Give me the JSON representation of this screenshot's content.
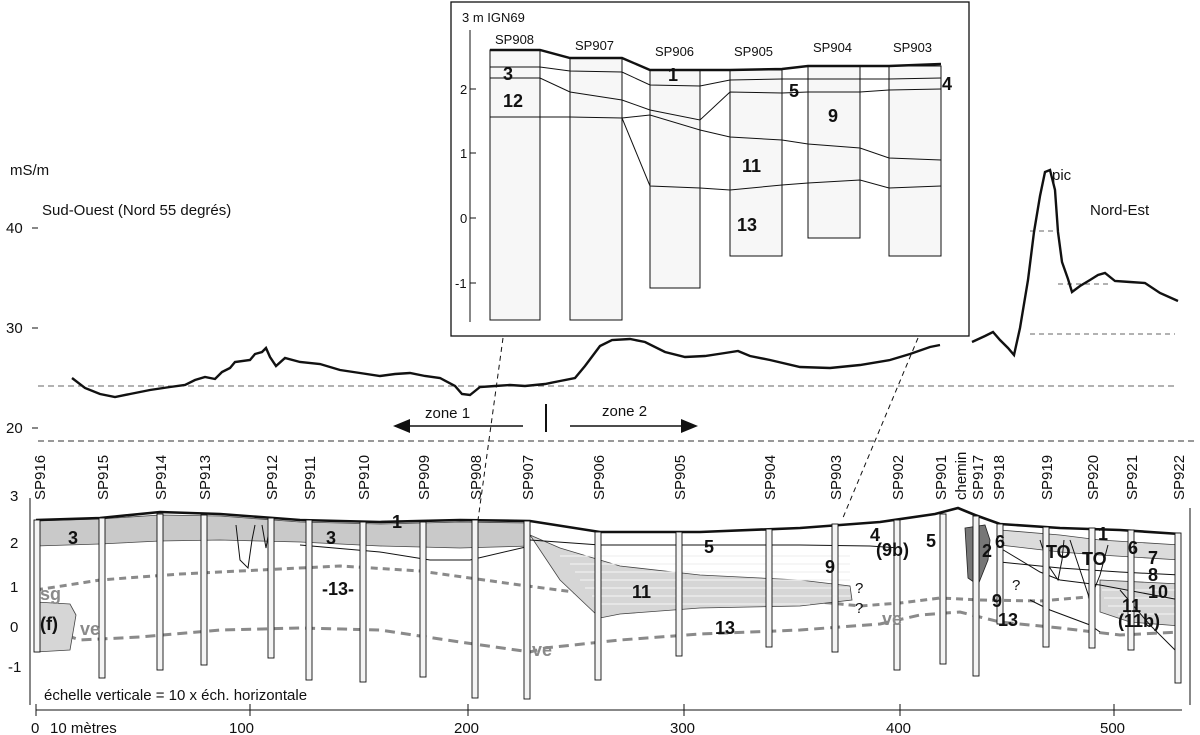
{
  "upper_plot": {
    "unit": "mS/m",
    "y_ticks": [
      "40",
      "30",
      "20"
    ],
    "left_title": "Sud-Ouest (Nord 55 degrés)",
    "right_title": "Nord-Est",
    "peak_label": "pic",
    "zone1": "zone 1",
    "zone2": "zone 2"
  },
  "inset": {
    "datum": "3 m IGN69",
    "y_ticks": [
      "2",
      "1",
      "0",
      "-1"
    ],
    "boreholes": [
      "SP908",
      "SP907",
      "SP906",
      "SP905",
      "SP904",
      "SP903"
    ],
    "units": [
      "3",
      "12",
      "1",
      "5",
      "4",
      "9",
      "11",
      "13"
    ]
  },
  "section": {
    "y_ticks": [
      "3",
      "2",
      "1",
      "0",
      "-1"
    ],
    "boreholes": [
      "SP916",
      "SP915",
      "SP914",
      "SP913",
      "SP912",
      "SP911",
      "SP910",
      "SP909",
      "SP908",
      "SP907",
      "SP906",
      "SP905",
      "SP904",
      "SP903",
      "SP902",
      "SP901",
      "chemin",
      "SP917",
      "SP918",
      "SP919",
      "SP920",
      "SP921",
      "SP922"
    ],
    "units": {
      "u1a": "1",
      "u3a": "3",
      "u3b": "3",
      "u13": "-13-",
      "u11": "11",
      "u13b": "13",
      "u5": "5",
      "u4": "4",
      "u9b": "(9b)",
      "u5b": "5",
      "u9": "9",
      "u2": "2",
      "u6": "6",
      "u9c": "9",
      "u13c": "13",
      "uTO1": "TO",
      "uTO2": "TO",
      "u1b": "1",
      "u6b": "6",
      "u7": "7",
      "u8": "8",
      "u10": "10",
      "u11b": "11",
      "u11c": "(11b)"
    },
    "gray_labels": {
      "sg": "sg",
      "f": "(f)",
      "ve1": "ve",
      "ve2": "ve",
      "ve3": "ve"
    },
    "question": "?",
    "scale_note": "échelle verticale = 10 x éch. horizontale"
  },
  "x_axis": {
    "ticks": [
      "0",
      "100",
      "200",
      "300",
      "400",
      "500"
    ],
    "scale_label": "10 mètres"
  }
}
